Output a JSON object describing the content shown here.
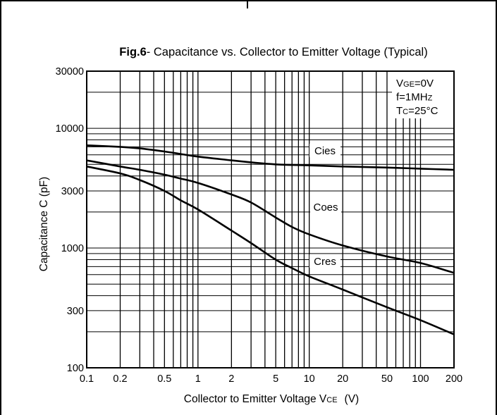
{
  "chart_data": {
    "type": "line",
    "title_bold": "Fig.6",
    "title_rest": "- Capacitance vs. Collector to Emitter Voltage  (Typical)",
    "xlabel_main": "Collector to Emitter Voltage V",
    "xlabel_sub": "CE",
    "xlabel_unit": "(V)",
    "ylabel": "Capacitance C  (pF)",
    "x_scale": "log",
    "y_scale": "log",
    "xlim": [
      0.1,
      200
    ],
    "ylim": [
      100,
      30000
    ],
    "x_ticks": [
      {
        "value": 0.1,
        "label": "0.1"
      },
      {
        "value": 0.2,
        "label": "0.2"
      },
      {
        "value": 0.5,
        "label": "0.5"
      },
      {
        "value": 1,
        "label": "1"
      },
      {
        "value": 2,
        "label": "2"
      },
      {
        "value": 5,
        "label": "5"
      },
      {
        "value": 10,
        "label": "10"
      },
      {
        "value": 20,
        "label": "20"
      },
      {
        "value": 50,
        "label": "50"
      },
      {
        "value": 100,
        "label": "100"
      },
      {
        "value": 200,
        "label": "200"
      }
    ],
    "y_ticks": [
      {
        "value": 100,
        "label": "100"
      },
      {
        "value": 300,
        "label": "300"
      },
      {
        "value": 1000,
        "label": "1000"
      },
      {
        "value": 3000,
        "label": "3000"
      },
      {
        "value": 10000,
        "label": "10000"
      },
      {
        "value": 30000,
        "label": "30000"
      }
    ],
    "grid": true,
    "conditions": [
      {
        "main": "V",
        "sub": "GE",
        "rest": "=0V"
      },
      {
        "main": "f=1MH",
        "sub": "Z",
        "rest": ""
      },
      {
        "main": "T",
        "sub": "C",
        "rest": "=25°C"
      }
    ],
    "series": [
      {
        "name": "Cies",
        "x": [
          0.1,
          0.2,
          0.3,
          0.5,
          0.7,
          1,
          2,
          3,
          5,
          10,
          20,
          50,
          100,
          200
        ],
        "values": [
          7200,
          7000,
          6800,
          6400,
          6100,
          5800,
          5400,
          5200,
          5000,
          4900,
          4800,
          4700,
          4600,
          4500
        ]
      },
      {
        "name": "Coes",
        "x": [
          0.1,
          0.2,
          0.3,
          0.5,
          0.7,
          1,
          2,
          3,
          5,
          7,
          10,
          20,
          50,
          100,
          200
        ],
        "values": [
          5400,
          4800,
          4500,
          4100,
          3800,
          3500,
          2800,
          2400,
          1800,
          1500,
          1300,
          1050,
          850,
          750,
          620
        ]
      },
      {
        "name": "Cres",
        "x": [
          0.1,
          0.2,
          0.3,
          0.5,
          0.7,
          1,
          2,
          3,
          5,
          7,
          10,
          20,
          50,
          100,
          200
        ],
        "values": [
          4800,
          4200,
          3700,
          3000,
          2500,
          2100,
          1400,
          1100,
          800,
          680,
          580,
          450,
          320,
          250,
          190
        ]
      }
    ]
  }
}
